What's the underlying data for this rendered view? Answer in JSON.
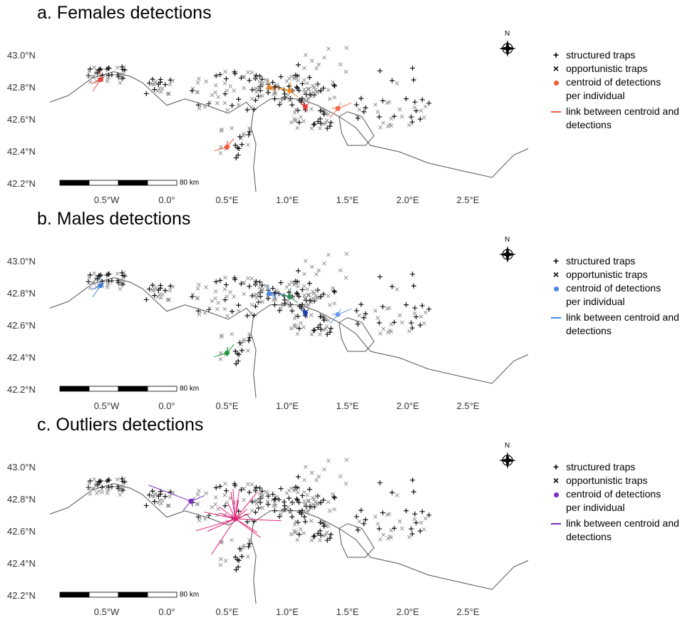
{
  "panels": [
    {
      "title": "a. Females detections",
      "color": "#f4593a",
      "centroid_colors": [
        "#e8413a",
        "#f4593a",
        "#e8822a",
        "#f08a20",
        "#ee3a3a",
        "#f06c48"
      ]
    },
    {
      "title": "b. Males detections",
      "color": "#4a86e8",
      "centroid_colors": [
        "#3b7dd8",
        "#1f9a3a",
        "#4a86e8",
        "#2e8b57",
        "#1b3fb0",
        "#6a9bef"
      ]
    },
    {
      "title": "c. Outliers detections",
      "color": "#7b2fbf",
      "centroid_colors": [
        "#7b2fbf",
        "#e8207a"
      ]
    }
  ],
  "legend": {
    "structured": "structured traps",
    "opportunistic": "opportunistic traps",
    "centroid": "centroid of detections",
    "centroid2": "per individual",
    "link": "link between centroid and",
    "link2": "detections",
    "structured_symbol": "+",
    "opportunistic_symbol": "×"
  },
  "axes": {
    "lat_labels": [
      "43.0°N",
      "42.8°N",
      "42.6°N",
      "42.4°N",
      "42.2°N"
    ],
    "lon_labels": [
      "0.5°W",
      "0.0°",
      "0.5°E",
      "1.0°E",
      "1.5°E",
      "2.0°E",
      "2.5°E"
    ]
  },
  "scale_label": "80 km",
  "north": "N",
  "border": [
    [
      -0.97,
      42.71
    ],
    [
      -0.82,
      42.75
    ],
    [
      -0.62,
      42.86
    ],
    [
      -0.44,
      42.9
    ],
    [
      -0.3,
      42.87
    ],
    [
      -0.2,
      42.83
    ],
    [
      -0.1,
      42.76
    ],
    [
      0.0,
      42.69
    ],
    [
      0.15,
      42.73
    ],
    [
      0.33,
      42.69
    ],
    [
      0.51,
      42.64
    ],
    [
      0.66,
      42.71
    ],
    [
      0.72,
      42.66
    ],
    [
      0.86,
      42.73
    ],
    [
      1.1,
      42.73
    ],
    [
      1.25,
      42.69
    ],
    [
      1.43,
      42.62
    ],
    [
      1.57,
      42.55
    ],
    [
      1.69,
      42.44
    ],
    [
      1.93,
      42.4
    ],
    [
      2.17,
      42.33
    ],
    [
      2.46,
      42.28
    ],
    [
      2.7,
      42.24
    ],
    [
      2.88,
      42.38
    ],
    [
      3.0,
      42.42
    ]
  ],
  "andorra": [
    [
      1.43,
      42.62
    ],
    [
      1.5,
      42.65
    ],
    [
      1.62,
      42.62
    ],
    [
      1.72,
      42.5
    ],
    [
      1.65,
      42.44
    ],
    [
      1.5,
      42.44
    ],
    [
      1.45,
      42.52
    ],
    [
      1.43,
      42.62
    ]
  ],
  "river": [
    [
      0.72,
      42.66
    ],
    [
      0.7,
      42.55
    ],
    [
      0.74,
      42.45
    ],
    [
      0.72,
      42.3
    ],
    [
      0.74,
      42.15
    ]
  ]
}
